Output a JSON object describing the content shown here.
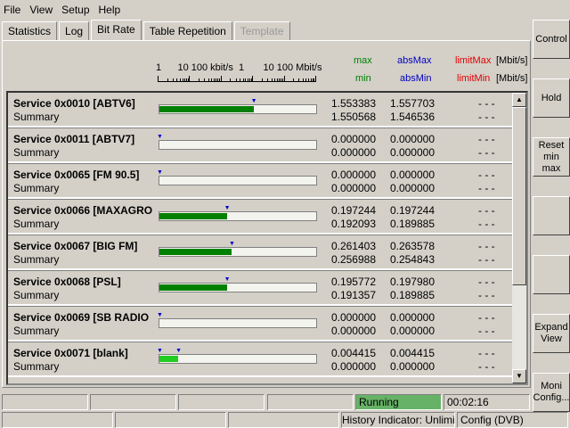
{
  "menu": [
    "File",
    "View",
    "Setup",
    "Help"
  ],
  "tabs": [
    {
      "label": "Statistics"
    },
    {
      "label": "Log"
    },
    {
      "label": "Bit Rate",
      "active": true
    },
    {
      "label": "Table Repetition"
    },
    {
      "label": "Template",
      "disabled": true
    }
  ],
  "header": {
    "scale_label": "1      10 100 kbit/s  1       10 100 Mbit/s",
    "max": "max",
    "min": "min",
    "absMax": "absMax",
    "absMin": "absMin",
    "limitMax": "limitMax",
    "limitMin": "limitMin",
    "unit1": "[Mbit/s]",
    "unit2": "[Mbit/s]",
    "colors": {
      "max": "#008000",
      "abs": "#0000c0",
      "limit": "#e00000"
    }
  },
  "rows": [
    {
      "service": "Service  0x0010 [ABTV6]",
      "summary": "Summary",
      "max": "1.553383",
      "min": "1.550568",
      "absMax": "1.557703",
      "absMin": "1.546536",
      "limitMax": "- - -",
      "limitMin": "- - -",
      "fill": 0.6,
      "markers": [
        0.6
      ],
      "color": "#008000"
    },
    {
      "service": "Service  0x0011 [ABTV7]",
      "summary": "Summary",
      "max": "0.000000",
      "min": "0.000000",
      "absMax": "0.000000",
      "absMin": "0.000000",
      "limitMax": "- - -",
      "limitMin": "- - -",
      "fill": 0,
      "markers": [
        0
      ],
      "color": "#008000"
    },
    {
      "service": "Service  0x0065 [FM 90.5]",
      "summary": "Summary",
      "max": "0.000000",
      "min": "0.000000",
      "absMax": "0.000000",
      "absMin": "0.000000",
      "limitMax": "- - -",
      "limitMin": "- - -",
      "fill": 0,
      "markers": [
        0
      ],
      "color": "#008000"
    },
    {
      "service": "Service  0x0066 [MAXAGRO",
      "summary": "Summary",
      "max": "0.197244",
      "min": "0.192093",
      "absMax": "0.197244",
      "absMin": "0.189885",
      "limitMax": "- - -",
      "limitMin": "- - -",
      "fill": 0.43,
      "markers": [
        0.43
      ],
      "color": "#008000"
    },
    {
      "service": "Service  0x0067 [BIG FM]",
      "summary": "Summary",
      "max": "0.261403",
      "min": "0.256988",
      "absMax": "0.263578",
      "absMin": "0.254843",
      "limitMax": "- - -",
      "limitMin": "- - -",
      "fill": 0.46,
      "markers": [
        0.46
      ],
      "color": "#008000"
    },
    {
      "service": "Service  0x0068 [PSL]",
      "summary": "Summary",
      "max": "0.195772",
      "min": "0.191357",
      "absMax": "0.197980",
      "absMin": "0.189885",
      "limitMax": "- - -",
      "limitMin": "- - -",
      "fill": 0.43,
      "markers": [
        0.43
      ],
      "color": "#008000"
    },
    {
      "service": "Service  0x0069 [SB RADIO",
      "summary": "Summary",
      "max": "0.000000",
      "min": "0.000000",
      "absMax": "0.000000",
      "absMin": "0.000000",
      "limitMax": "- - -",
      "limitMin": "- - -",
      "fill": 0,
      "markers": [
        0
      ],
      "color": "#008000"
    },
    {
      "service": "Service  0x0071 [blank]",
      "summary": "Summary",
      "max": "0.004415",
      "min": "0.000000",
      "absMax": "0.004415",
      "absMin": "0.000000",
      "limitMax": "- - -",
      "limitMin": "- - -",
      "fill": 0.12,
      "markers": [
        0,
        0.12
      ],
      "color": "#22cc22"
    }
  ],
  "side_buttons": [
    "Control",
    "Hold",
    "Reset min max",
    "",
    "",
    "Expand View",
    "Moni Config..."
  ],
  "status": {
    "running": "Running",
    "running_color": "#66b266",
    "time": "00:02:16",
    "history": "History Indicator: Unlimited",
    "config": "Config (DVB)"
  }
}
